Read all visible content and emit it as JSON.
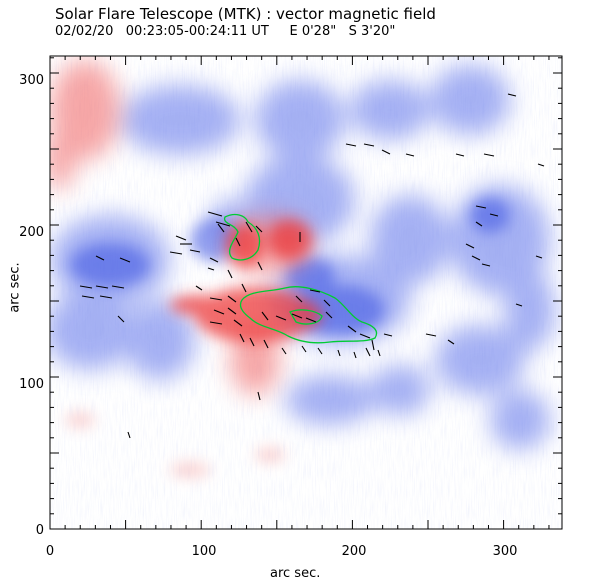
{
  "header": {
    "title": "Solar Flare Telescope (MTK) : vector magnetic field",
    "subtitle": "02/02/20   00:23:05-00:24:11 UT     E 0'28\"   S 3'20\""
  },
  "axes": {
    "xlabel": "arc sec.",
    "ylabel": "arc sec.",
    "x_ticks": [
      "0",
      "100",
      "200",
      "300"
    ],
    "y_ticks": [
      "0",
      "100",
      "200",
      "300"
    ]
  },
  "colors": {
    "positive_field": "#f03030",
    "negative_field": "#3050e0",
    "contour": "#00cc33",
    "vector": "#000000"
  }
}
